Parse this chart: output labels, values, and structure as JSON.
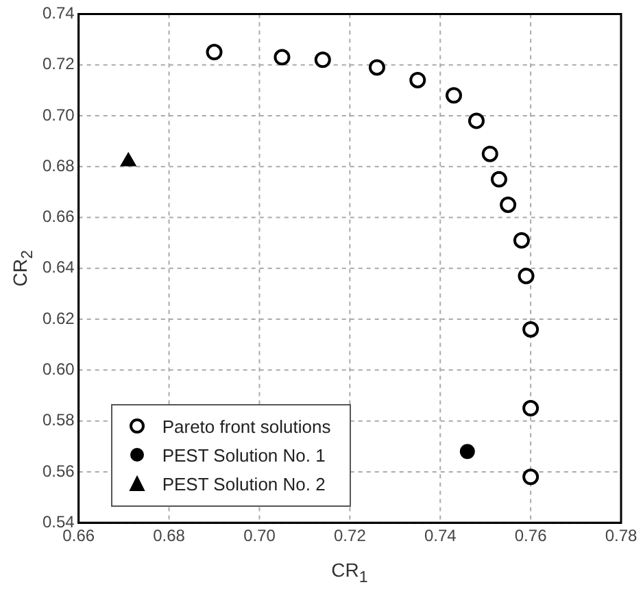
{
  "chart_data": {
    "type": "scatter",
    "xlabel": "CR$_{1}$",
    "ylabel": "CR$_{2}$",
    "xlim": [
      0.66,
      0.78
    ],
    "xticks": [
      0.66,
      0.68,
      {
        "value": 0.7,
        "label": "0.70"
      },
      0.72,
      0.74,
      0.76,
      0.78
    ],
    "ylim": [
      0.54,
      0.74
    ],
    "yticks": [
      0.54,
      0.56,
      0.58,
      {
        "value": 0.6,
        "label": "0.60"
      },
      0.62,
      0.64,
      0.66,
      0.68,
      {
        "value": 0.7,
        "label": "0.70"
      },
      0.72,
      0.74
    ],
    "grid": true,
    "legend": "bottom left",
    "series": [
      {
        "name": "Pareto front solutions",
        "color": "#000000",
        "marker": "circle",
        "x": [
          0.69,
          0.705,
          0.714,
          0.726,
          0.735,
          0.743,
          0.748,
          0.751,
          0.753,
          0.755,
          0.758,
          0.759,
          0.76,
          0.76,
          0.76
        ],
        "values": [
          0.725,
          0.723,
          0.722,
          0.719,
          0.714,
          0.708,
          0.698,
          0.685,
          0.675,
          0.665,
          0.651,
          0.637,
          0.616,
          0.585,
          0.558
        ]
      },
      {
        "name": "PEST Solution No. 1",
        "color": "#000000",
        "marker": "circle",
        "x": [
          0.746
        ],
        "values": [
          0.568
        ]
      },
      {
        "name": "PEST Solution No. 2",
        "color": "#000000",
        "marker": "triangle",
        "x": [
          0.671
        ],
        "values": [
          0.682
        ]
      }
    ]
  }
}
